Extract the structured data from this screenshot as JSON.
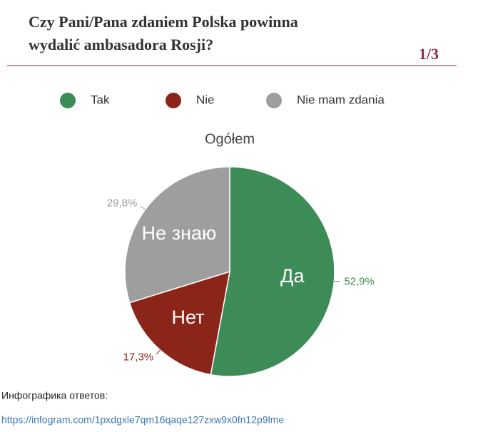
{
  "header": {
    "title_lines": [
      "Czy Pani/Pana zdaniem Polska powinna",
      "wydalić ambasadora Rosji?"
    ],
    "page": "1/3"
  },
  "chart_data": {
    "type": "pie",
    "title": "Ogółem",
    "categories": [
      "Tak",
      "Nie",
      "Nie mam zdania"
    ],
    "values": [
      52.9,
      17.3,
      29.8
    ],
    "value_labels": [
      "52,9%",
      "17,3%",
      "29,8%"
    ],
    "slice_labels": [
      "Да",
      "Нет",
      "Не знаю"
    ],
    "colors": [
      "#3d8b57",
      "#8b2519",
      "#9e9e9e"
    ],
    "legend": "top"
  },
  "footer": {
    "caption": "Инфографика ответов:",
    "link": "https://infogram.com/1pxdgxle7qm16qaqe127zxw9x0fn12p9lme"
  }
}
